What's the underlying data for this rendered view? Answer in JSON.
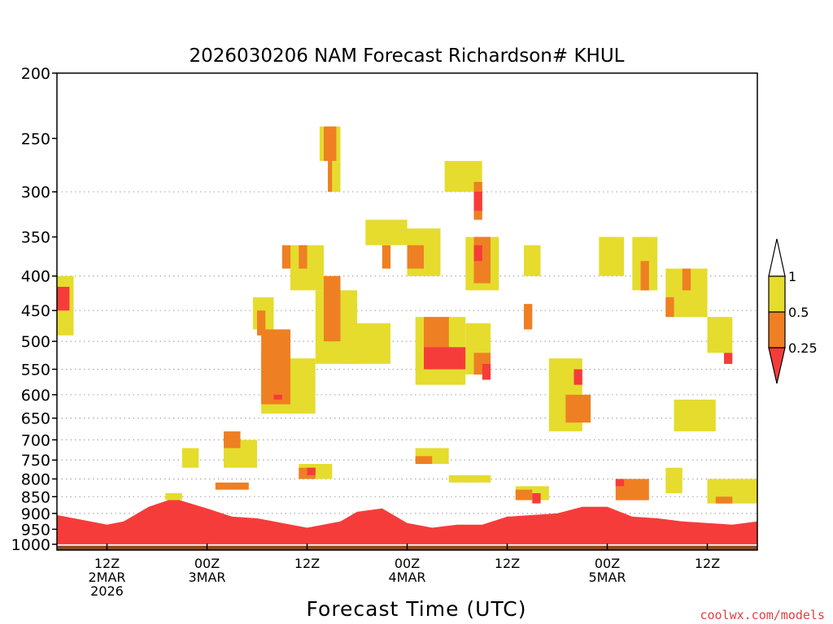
{
  "chart_data": {
    "type": "heatmap",
    "title": "2026030206 NAM Forecast Richardson# KHUL",
    "xlabel": "Forecast Time (UTC)",
    "ylabel": "",
    "credit": "coolwx.com/models",
    "y_scale": "log-pressure",
    "ylim_hPa": [
      1020,
      200
    ],
    "xlim_hours": [
      6,
      90
    ],
    "y_ticks": [
      {
        "value": 200,
        "label": "200"
      },
      {
        "value": 250,
        "label": "250"
      },
      {
        "value": 300,
        "label": "300"
      },
      {
        "value": 350,
        "label": "350"
      },
      {
        "value": 400,
        "label": "400"
      },
      {
        "value": 450,
        "label": "450"
      },
      {
        "value": 500,
        "label": "500"
      },
      {
        "value": 550,
        "label": "550"
      },
      {
        "value": 600,
        "label": "600"
      },
      {
        "value": 650,
        "label": "650"
      },
      {
        "value": 700,
        "label": "700"
      },
      {
        "value": 750,
        "label": "750"
      },
      {
        "value": 800,
        "label": "800"
      },
      {
        "value": 850,
        "label": "850"
      },
      {
        "value": 900,
        "label": "900"
      },
      {
        "value": 950,
        "label": "950"
      },
      {
        "value": 1000,
        "label": "1000"
      }
    ],
    "gridlines_hPa": [
      300,
      400,
      450,
      500,
      550,
      600,
      650,
      700,
      750,
      800,
      850,
      900,
      950
    ],
    "x_ticks": [
      {
        "hour": 12,
        "lines": [
          "12Z",
          "2MAR",
          "2026"
        ]
      },
      {
        "hour": 24,
        "lines": [
          "00Z",
          "3MAR"
        ]
      },
      {
        "hour": 36,
        "lines": [
          "12Z"
        ]
      },
      {
        "hour": 48,
        "lines": [
          "00Z",
          "4MAR"
        ]
      },
      {
        "hour": 60,
        "lines": [
          "12Z"
        ]
      },
      {
        "hour": 72,
        "lines": [
          "00Z",
          "5MAR"
        ]
      },
      {
        "hour": 84,
        "lines": [
          "12Z"
        ]
      }
    ],
    "legend": {
      "labels": [
        "1",
        "0.5",
        "0.25"
      ],
      "classes": [
        {
          "name": "0.5 to 1",
          "color": "#e5dc2e"
        },
        {
          "name": "0.25 to 0.5",
          "color": "#ef7f23"
        },
        {
          "name": "below 0.25",
          "color": "#f53c3a"
        }
      ]
    },
    "ground_color": "#8b4a25",
    "near_surface_layer": {
      "description": "Ri < 0.25 boundary layer band",
      "hours": [
        6,
        12,
        14,
        17,
        20,
        24,
        27,
        30,
        36,
        40,
        42,
        45,
        48,
        51,
        54,
        57,
        60,
        63,
        66,
        69,
        72,
        75,
        78,
        81,
        84,
        87,
        90
      ],
      "top_hPa": [
        905,
        935,
        925,
        880,
        855,
        885,
        910,
        915,
        945,
        925,
        895,
        885,
        930,
        945,
        935,
        935,
        910,
        905,
        900,
        880,
        880,
        910,
        915,
        925,
        930,
        935,
        925
      ]
    },
    "regions": [
      {
        "class": "yellow",
        "hours": [
          6,
          8
        ],
        "hPa": [
          400,
          490
        ]
      },
      {
        "class": "red",
        "hours": [
          6,
          7.5
        ],
        "hPa": [
          415,
          450
        ]
      },
      {
        "class": "yellow",
        "hours": [
          29.5,
          32
        ],
        "hPa": [
          430,
          480
        ]
      },
      {
        "class": "orange",
        "hours": [
          30,
          31
        ],
        "hPa": [
          450,
          490
        ]
      },
      {
        "class": "yellow",
        "hours": [
          34,
          38
        ],
        "hPa": [
          360,
          420
        ]
      },
      {
        "class": "orange",
        "hours": [
          33,
          34
        ],
        "hPa": [
          360,
          390
        ]
      },
      {
        "class": "orange",
        "hours": [
          35,
          36
        ],
        "hPa": [
          360,
          390
        ]
      },
      {
        "class": "yellow",
        "hours": [
          37,
          42
        ],
        "hPa": [
          420,
          540
        ]
      },
      {
        "class": "orange",
        "hours": [
          38,
          40
        ],
        "hPa": [
          400,
          500
        ]
      },
      {
        "class": "yellow",
        "hours": [
          37.5,
          40
        ],
        "hPa": [
          240,
          270
        ]
      },
      {
        "class": "orange",
        "hours": [
          38,
          39.5
        ],
        "hPa": [
          240,
          270
        ]
      },
      {
        "class": "yellow",
        "hours": [
          38.5,
          40
        ],
        "hPa": [
          270,
          300
        ]
      },
      {
        "class": "orange",
        "hours": [
          38.5,
          39
        ],
        "hPa": [
          270,
          300
        ]
      },
      {
        "class": "yellow",
        "hours": [
          30.5,
          37
        ],
        "hPa": [
          530,
          640
        ]
      },
      {
        "class": "orange",
        "hours": [
          30.5,
          34
        ],
        "hPa": [
          480,
          620
        ]
      },
      {
        "class": "red",
        "hours": [
          32,
          33
        ],
        "hPa": [
          600,
          610
        ]
      },
      {
        "class": "yellow",
        "hours": [
          40,
          46
        ],
        "hPa": [
          470,
          540
        ]
      },
      {
        "class": "yellow",
        "hours": [
          43,
          48
        ],
        "hPa": [
          330,
          360
        ]
      },
      {
        "class": "orange",
        "hours": [
          45,
          46
        ],
        "hPa": [
          360,
          390
        ]
      },
      {
        "class": "yellow",
        "hours": [
          48,
          52
        ],
        "hPa": [
          340,
          400
        ]
      },
      {
        "class": "orange",
        "hours": [
          48,
          50
        ],
        "hPa": [
          360,
          390
        ]
      },
      {
        "class": "yellow",
        "hours": [
          49,
          55
        ],
        "hPa": [
          460,
          580
        ]
      },
      {
        "class": "orange",
        "hours": [
          50,
          53
        ],
        "hPa": [
          460,
          550
        ]
      },
      {
        "class": "red",
        "hours": [
          50,
          55
        ],
        "hPa": [
          510,
          550
        ]
      },
      {
        "class": "yellow",
        "hours": [
          52.5,
          57
        ],
        "hPa": [
          270,
          300
        ]
      },
      {
        "class": "orange",
        "hours": [
          56,
          57
        ],
        "hPa": [
          290,
          330
        ]
      },
      {
        "class": "red",
        "hours": [
          56,
          57
        ],
        "hPa": [
          300,
          320
        ]
      },
      {
        "class": "yellow",
        "hours": [
          55,
          59
        ],
        "hPa": [
          350,
          420
        ]
      },
      {
        "class": "orange",
        "hours": [
          56,
          58
        ],
        "hPa": [
          350,
          410
        ]
      },
      {
        "class": "red",
        "hours": [
          56,
          57
        ],
        "hPa": [
          360,
          380
        ]
      },
      {
        "class": "yellow",
        "hours": [
          55,
          58
        ],
        "hPa": [
          470,
          560
        ]
      },
      {
        "class": "orange",
        "hours": [
          56,
          58
        ],
        "hPa": [
          520,
          560
        ]
      },
      {
        "class": "red",
        "hours": [
          57,
          58
        ],
        "hPa": [
          540,
          570
        ]
      },
      {
        "class": "yellow",
        "hours": [
          62,
          64
        ],
        "hPa": [
          360,
          400
        ]
      },
      {
        "class": "orange",
        "hours": [
          62,
          63
        ],
        "hPa": [
          440,
          480
        ]
      },
      {
        "class": "yellow",
        "hours": [
          65,
          69
        ],
        "hPa": [
          530,
          680
        ]
      },
      {
        "class": "orange",
        "hours": [
          67,
          70
        ],
        "hPa": [
          600,
          660
        ]
      },
      {
        "class": "red",
        "hours": [
          68,
          69
        ],
        "hPa": [
          550,
          580
        ]
      },
      {
        "class": "yellow",
        "hours": [
          71,
          74
        ],
        "hPa": [
          350,
          400
        ]
      },
      {
        "class": "yellow",
        "hours": [
          75,
          78
        ],
        "hPa": [
          350,
          420
        ]
      },
      {
        "class": "orange",
        "hours": [
          76,
          77
        ],
        "hPa": [
          380,
          420
        ]
      },
      {
        "class": "yellow",
        "hours": [
          79,
          84
        ],
        "hPa": [
          390,
          460
        ]
      },
      {
        "class": "orange",
        "hours": [
          79,
          80
        ],
        "hPa": [
          430,
          460
        ]
      },
      {
        "class": "orange",
        "hours": [
          81,
          82
        ],
        "hPa": [
          390,
          420
        ]
      },
      {
        "class": "yellow",
        "hours": [
          84,
          87
        ],
        "hPa": [
          460,
          520
        ]
      },
      {
        "class": "red",
        "hours": [
          86,
          87
        ],
        "hPa": [
          520,
          540
        ]
      },
      {
        "class": "yellow",
        "hours": [
          80,
          85
        ],
        "hPa": [
          610,
          680
        ]
      },
      {
        "class": "yellow",
        "hours": [
          79,
          81
        ],
        "hPa": [
          770,
          840
        ]
      },
      {
        "class": "yellow",
        "hours": [
          21,
          23
        ],
        "hPa": [
          720,
          770
        ]
      },
      {
        "class": "yellow",
        "hours": [
          26,
          30
        ],
        "hPa": [
          700,
          770
        ]
      },
      {
        "class": "orange",
        "hours": [
          26,
          28
        ],
        "hPa": [
          680,
          720
        ]
      },
      {
        "class": "yellow",
        "hours": [
          19,
          21
        ],
        "hPa": [
          840,
          860
        ]
      },
      {
        "class": "orange",
        "hours": [
          25,
          29
        ],
        "hPa": [
          810,
          830
        ]
      },
      {
        "class": "yellow",
        "hours": [
          49,
          53
        ],
        "hPa": [
          720,
          760
        ]
      },
      {
        "class": "orange",
        "hours": [
          49,
          51
        ],
        "hPa": [
          740,
          760
        ]
      },
      {
        "class": "yellow",
        "hours": [
          53,
          58
        ],
        "hPa": [
          790,
          810
        ]
      },
      {
        "class": "yellow",
        "hours": [
          61,
          65
        ],
        "hPa": [
          820,
          860
        ]
      },
      {
        "class": "orange",
        "hours": [
          61,
          63
        ],
        "hPa": [
          830,
          860
        ]
      },
      {
        "class": "red",
        "hours": [
          63,
          64
        ],
        "hPa": [
          840,
          870
        ]
      },
      {
        "class": "orange",
        "hours": [
          73,
          77
        ],
        "hPa": [
          800,
          860
        ]
      },
      {
        "class": "red",
        "hours": [
          73,
          74
        ],
        "hPa": [
          800,
          820
        ]
      },
      {
        "class": "yellow",
        "hours": [
          84,
          90
        ],
        "hPa": [
          800,
          870
        ]
      },
      {
        "class": "orange",
        "hours": [
          85,
          87
        ],
        "hPa": [
          850,
          870
        ]
      },
      {
        "class": "yellow",
        "hours": [
          35,
          39
        ],
        "hPa": [
          760,
          800
        ]
      },
      {
        "class": "orange",
        "hours": [
          35,
          37
        ],
        "hPa": [
          770,
          800
        ]
      },
      {
        "class": "red",
        "hours": [
          36,
          37
        ],
        "hPa": [
          770,
          790
        ]
      }
    ]
  }
}
